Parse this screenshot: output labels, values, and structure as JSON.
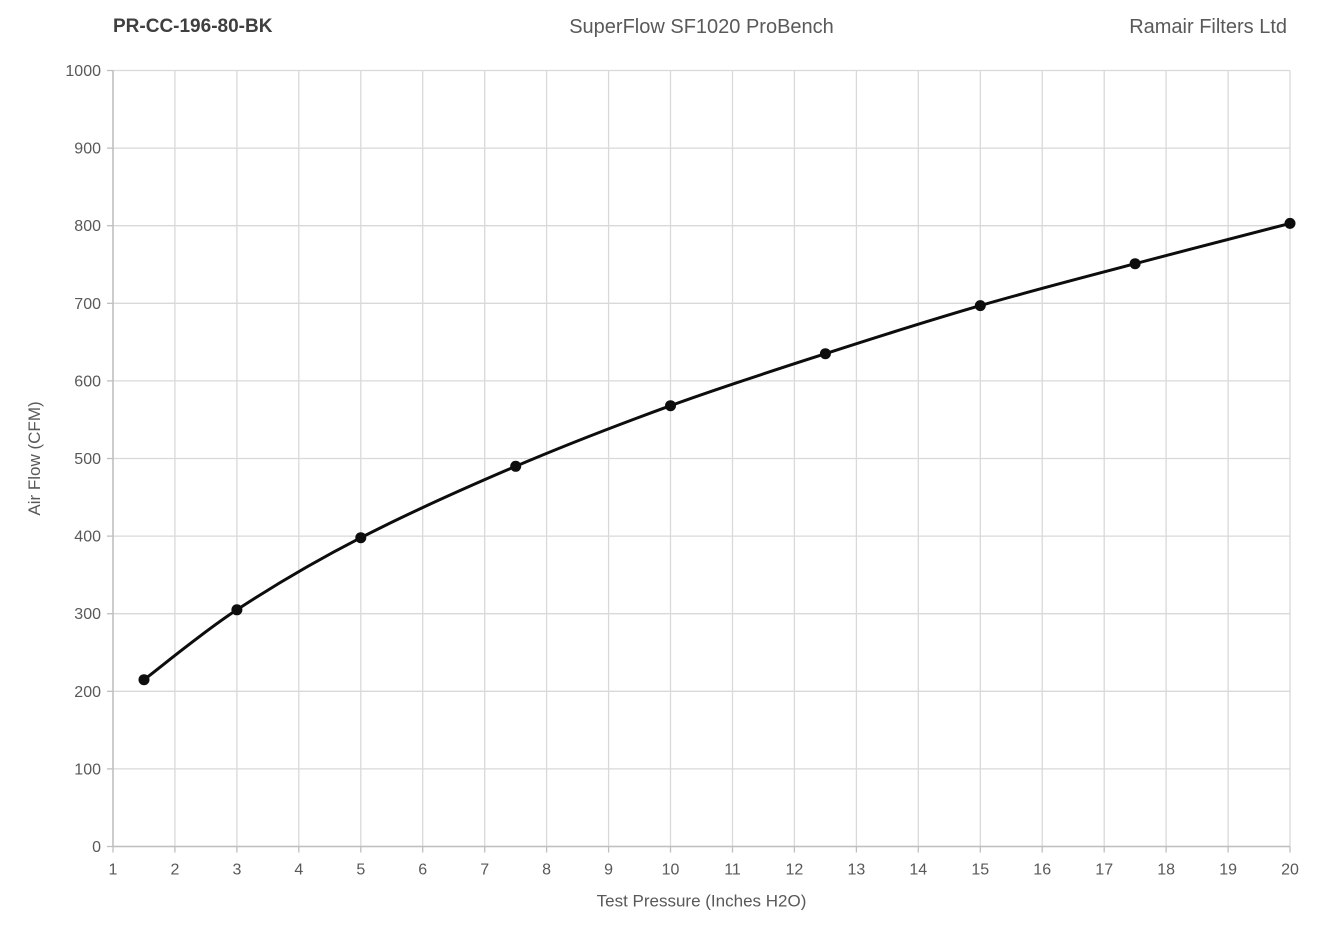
{
  "header": {
    "part_number": "PR-CC-196-80-BK",
    "bench_title": "SuperFlow SF1020 ProBench",
    "company": "Ramair Filters Ltd"
  },
  "chart_data": {
    "type": "line",
    "title": "",
    "xlabel": "Test Pressure (Inches H2O)",
    "ylabel": "Air Flow (CFM)",
    "x": [
      1.5,
      3,
      5,
      7.5,
      10,
      12.5,
      15,
      17.5,
      20
    ],
    "series": [
      {
        "name": "Air Flow",
        "values": [
          215,
          305,
          398,
          490,
          568,
          635,
          697,
          751,
          803
        ]
      }
    ],
    "xlim": [
      1,
      20
    ],
    "ylim": [
      0,
      1000
    ],
    "x_ticks": [
      1,
      2,
      3,
      4,
      5,
      6,
      7,
      8,
      9,
      10,
      11,
      12,
      13,
      14,
      15,
      16,
      17,
      18,
      19,
      20
    ],
    "y_ticks": [
      0,
      100,
      200,
      300,
      400,
      500,
      600,
      700,
      800,
      900,
      1000
    ],
    "grid": true,
    "legend": false,
    "smooth": true,
    "marker": "circle",
    "colors": {
      "line": "#0d0d0d",
      "marker": "#0d0d0d",
      "gridline": "#d9d9d9",
      "axis_line": "#bfbfbf",
      "tick_text": "#595959",
      "axis_title_text": "#595959"
    }
  }
}
